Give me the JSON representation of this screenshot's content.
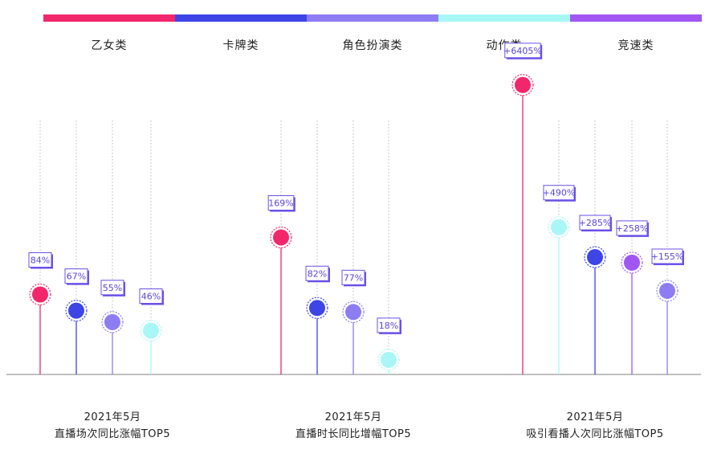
{
  "legend": [
    {
      "label": "乙女类",
      "color": "#f2266b"
    },
    {
      "label": "卡牌类",
      "color": "#3d45e6"
    },
    {
      "label": "角色扮演类",
      "color": "#8d7cf2"
    },
    {
      "label": "动作类",
      "color": "#a8f7f6"
    },
    {
      "label": "竞速类",
      "color": "#a156f2"
    }
  ],
  "chart_data": [
    {
      "type": "lollipop",
      "year_label": "2021年5月",
      "title": "直播场次同比涨幅TOP5",
      "categories": [
        "乙女类",
        "卡牌类",
        "角色扮演类",
        "动作类"
      ],
      "values": [
        84,
        67,
        55,
        46
      ],
      "value_labels": [
        "84%",
        "67%",
        "55%",
        "46%"
      ],
      "colors": [
        "#f2266b",
        "#3d45e6",
        "#8d7cf2",
        "#a8f7f6"
      ]
    },
    {
      "type": "lollipop",
      "year_label": "2021年5月",
      "title": "直播时长同比增幅TOP5",
      "categories": [
        "乙女类",
        "卡牌类",
        "角色扮演类",
        "动作类"
      ],
      "values": [
        169,
        82,
        77,
        18
      ],
      "value_labels": [
        "169%",
        "82%",
        "77%",
        "18%"
      ],
      "colors": [
        "#f2266b",
        "#3d45e6",
        "#8d7cf2",
        "#a8f7f6"
      ]
    },
    {
      "type": "lollipop",
      "year_label": "2021年5月",
      "title": "吸引看播人次同比涨幅TOP5",
      "categories": [
        "乙女类",
        "动作类",
        "卡牌类",
        "竞速类",
        "角色扮演类"
      ],
      "values": [
        6405,
        490,
        285,
        258,
        155
      ],
      "value_labels": [
        "+6405%",
        "+490%",
        "+285%",
        "+258%",
        "+155%"
      ],
      "colors": [
        "#f2266b",
        "#a8f7f6",
        "#3d45e6",
        "#a156f2",
        "#8d7cf2"
      ]
    }
  ]
}
